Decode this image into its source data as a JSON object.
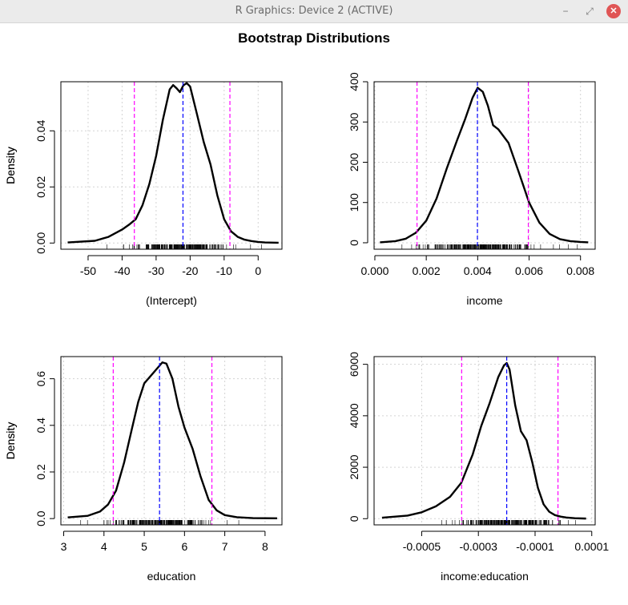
{
  "window": {
    "title": "R Graphics: Device 2 (ACTIVE)",
    "minimize_label": "−",
    "maximize_label": "⤢",
    "close_label": "✕"
  },
  "figure": {
    "title": "Bootstrap Distributions"
  },
  "colors": {
    "curve": "#000000",
    "estimate_line": "#0000ff",
    "ci_line": "#ff00ff",
    "grid": "#d3d3d3"
  },
  "chart_data": [
    {
      "type": "line",
      "xlabel": "(Intercept)",
      "ylabel": "Density",
      "xlim": [
        -58,
        7
      ],
      "ylim": [
        -0.0022,
        0.0575
      ],
      "xticks": [
        -50,
        -40,
        -30,
        -20,
        -10,
        0
      ],
      "xtick_labels": [
        "-50",
        "-40",
        "-30",
        "-20",
        "-10",
        "0"
      ],
      "yticks": [
        0.0,
        0.02,
        0.04
      ],
      "ytick_labels": [
        "0.00",
        "0.02",
        "0.04"
      ],
      "grid": true,
      "estimate": -22.1,
      "ci": [
        -36.4,
        -8.3
      ],
      "x": [
        -56,
        -48,
        -44,
        -40,
        -38,
        -36,
        -34,
        -32,
        -30,
        -28,
        -26,
        -25,
        -24,
        -23,
        -22,
        -21,
        -20,
        -18,
        -16,
        -14,
        -12,
        -10,
        -8,
        -6,
        -4,
        -2,
        0,
        2,
        6
      ],
      "y": [
        0.0002,
        0.0008,
        0.0022,
        0.0048,
        0.0065,
        0.0085,
        0.0135,
        0.021,
        0.031,
        0.044,
        0.0548,
        0.0563,
        0.0552,
        0.0538,
        0.0562,
        0.057,
        0.0558,
        0.046,
        0.036,
        0.028,
        0.017,
        0.0085,
        0.0042,
        0.0022,
        0.0012,
        0.0007,
        0.0004,
        0.0002,
        0.0001
      ]
    },
    {
      "type": "line",
      "xlabel": "income",
      "ylabel": "Density",
      "xlim": [
        -3e-05,
        0.00857
      ],
      "ylim": [
        -16,
        400
      ],
      "xticks": [
        0.0,
        0.002,
        0.004,
        0.006,
        0.008
      ],
      "xtick_labels": [
        "0.000",
        "0.002",
        "0.004",
        "0.006",
        "0.008"
      ],
      "yticks": [
        0,
        100,
        200,
        300,
        400
      ],
      "ytick_labels": [
        "0",
        "100",
        "200",
        "300",
        "400"
      ],
      "grid": true,
      "estimate": 0.00399,
      "ci": [
        0.00164,
        0.00597
      ],
      "x": [
        0.0002,
        0.0008,
        0.0012,
        0.0016,
        0.002,
        0.0024,
        0.0028,
        0.0032,
        0.0035,
        0.0038,
        0.004,
        0.0042,
        0.0044,
        0.0046,
        0.0048,
        0.0052,
        0.0056,
        0.006,
        0.0064,
        0.0068,
        0.0072,
        0.0076,
        0.008,
        0.0083
      ],
      "y": [
        1,
        4,
        10,
        25,
        55,
        110,
        185,
        255,
        305,
        360,
        385,
        375,
        340,
        292,
        282,
        248,
        175,
        100,
        50,
        22,
        9,
        4,
        2,
        1
      ]
    },
    {
      "type": "line",
      "xlabel": "education",
      "ylabel": "Density",
      "xlim": [
        2.93,
        8.42
      ],
      "ylim": [
        -0.027,
        0.695
      ],
      "xticks": [
        3,
        4,
        5,
        6,
        7,
        8
      ],
      "xtick_labels": [
        "3",
        "4",
        "5",
        "6",
        "7",
        "8"
      ],
      "yticks": [
        0.0,
        0.2,
        0.4,
        0.6
      ],
      "ytick_labels": [
        "0.0",
        "0.2",
        "0.4",
        "0.6"
      ],
      "grid": true,
      "estimate": 5.38,
      "ci": [
        4.23,
        6.68
      ],
      "x": [
        3.1,
        3.6,
        3.9,
        4.1,
        4.3,
        4.5,
        4.7,
        4.85,
        5.0,
        5.1,
        5.2,
        5.3,
        5.45,
        5.55,
        5.7,
        5.85,
        6.0,
        6.2,
        6.4,
        6.6,
        6.8,
        7.0,
        7.3,
        7.7,
        8.3
      ],
      "y": [
        0.005,
        0.012,
        0.03,
        0.06,
        0.12,
        0.24,
        0.39,
        0.5,
        0.58,
        0.6,
        0.62,
        0.64,
        0.67,
        0.665,
        0.6,
        0.48,
        0.39,
        0.3,
        0.18,
        0.08,
        0.035,
        0.015,
        0.006,
        0.002,
        0.001
      ]
    },
    {
      "type": "line",
      "xlabel": "income:education",
      "ylabel": "Density",
      "xlim": [
        -0.000668,
        0.000112
      ],
      "ylim": [
        -240,
        6300
      ],
      "xticks": [
        -0.0005,
        -0.0003,
        -0.0001,
        0.0001
      ],
      "xtick_labels": [
        "-0.0005",
        "-0.0003",
        "-0.0001",
        "0.0001"
      ],
      "yticks": [
        0,
        2000,
        4000,
        6000
      ],
      "ytick_labels": [
        "0",
        "2000",
        "4000",
        "6000"
      ],
      "grid": true,
      "estimate": -0.0002,
      "ci": [
        -0.000359,
        -1.92e-05
      ],
      "x": [
        -0.00064,
        -0.00055,
        -0.0005,
        -0.00045,
        -0.0004,
        -0.00036,
        -0.00032,
        -0.00029,
        -0.00026,
        -0.00023,
        -0.00021,
        -0.0002,
        -0.00019,
        -0.00017,
        -0.00015,
        -0.00013,
        -0.00011,
        -9e-05,
        -7e-05,
        -5e-05,
        -3e-05,
        -1e-05,
        1e-05,
        4e-05,
        8e-05
      ],
      "y": [
        40,
        120,
        250,
        480,
        850,
        1400,
        2500,
        3600,
        4500,
        5500,
        5950,
        6050,
        5800,
        4400,
        3400,
        3050,
        2200,
        1200,
        560,
        270,
        140,
        80,
        45,
        20,
        5
      ]
    }
  ]
}
